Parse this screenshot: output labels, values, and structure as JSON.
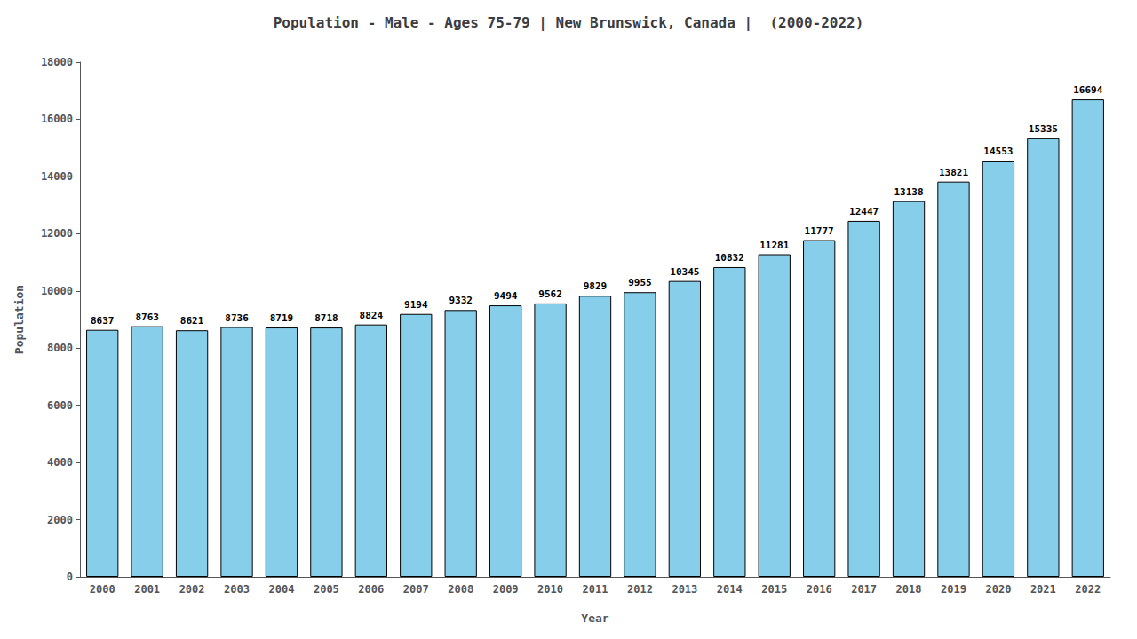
{
  "chart_data": {
    "type": "bar",
    "title": "Population - Male - Ages 75-79 | New Brunswick, Canada |  (2000-2022)",
    "xlabel": "Year",
    "ylabel": "Population",
    "categories": [
      "2000",
      "2001",
      "2002",
      "2003",
      "2004",
      "2005",
      "2006",
      "2007",
      "2008",
      "2009",
      "2010",
      "2011",
      "2012",
      "2013",
      "2014",
      "2015",
      "2016",
      "2017",
      "2018",
      "2019",
      "2020",
      "2021",
      "2022"
    ],
    "values": [
      8637,
      8763,
      8621,
      8736,
      8719,
      8718,
      8824,
      9194,
      9332,
      9494,
      9562,
      9829,
      9955,
      10345,
      10832,
      11281,
      11777,
      12447,
      13138,
      13821,
      14553,
      15335,
      16694
    ],
    "color": "#87CEEB",
    "ylim": [
      0,
      18000
    ],
    "yticks": [
      0,
      2000,
      4000,
      6000,
      8000,
      10000,
      12000,
      14000,
      16000,
      18000
    ],
    "grid": false,
    "data_labels": true
  }
}
